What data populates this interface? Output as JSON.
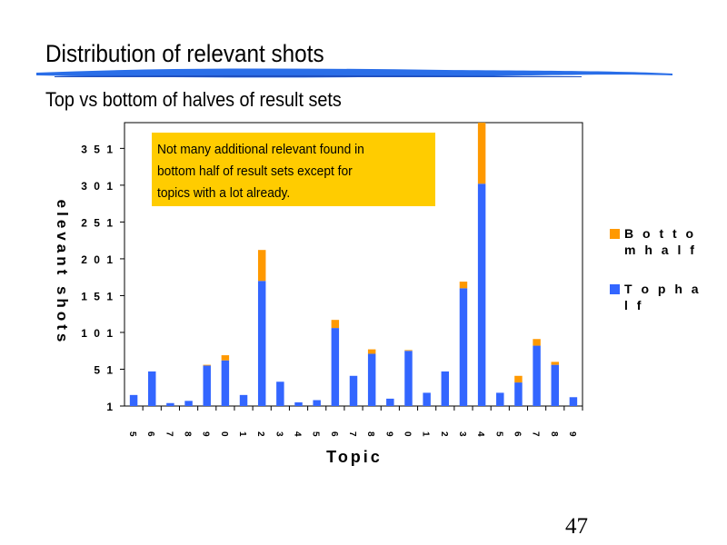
{
  "slide": {
    "title": "Distribution of relevant shots",
    "subtitle": "Top vs bottom of halves of result sets",
    "page_number": "47"
  },
  "annotation": {
    "lines": [
      "Not many additional relevant found in",
      "bottom half of result sets except for",
      "topics with a lot already."
    ],
    "color": "#ffcc00"
  },
  "chart_data": {
    "type": "bar",
    "stacked": true,
    "xlabel": "Topic",
    "ylabel": "elevant shots",
    "ylim": [
      1,
      386
    ],
    "yticks": [
      1,
      51,
      101,
      151,
      201,
      251,
      301,
      351
    ],
    "ytick_labels": [
      "1",
      "5 1",
      "1 0 1",
      "1 5 1",
      "2 0 1",
      "2 5 1",
      "3 0 1",
      "3 5 1"
    ],
    "categories": [
      "5",
      "6",
      "7",
      "8",
      "9",
      "0",
      "1",
      "2",
      "3",
      "4",
      "5",
      "6",
      "7",
      "8",
      "9",
      "0",
      "1",
      "2",
      "3",
      "4",
      "5",
      "6",
      "7",
      "8",
      "9"
    ],
    "series": [
      {
        "name": "T o p   h a l f",
        "color": "#3366ff",
        "values": [
          15,
          47,
          4,
          7,
          55,
          62,
          15,
          170,
          33,
          5,
          8,
          106,
          41,
          71,
          10,
          75,
          18,
          47,
          160,
          302,
          18,
          32,
          82,
          56,
          12
        ]
      },
      {
        "name": "B o t t o m   h a l f",
        "color": "#ff9900",
        "values": [
          0,
          0,
          0,
          0,
          1,
          7,
          0,
          42,
          0,
          0,
          0,
          11,
          0,
          6,
          0,
          1,
          0,
          0,
          9,
          83,
          0,
          9,
          9,
          4,
          0
        ]
      }
    ],
    "legend_position": "right",
    "grid": false
  }
}
